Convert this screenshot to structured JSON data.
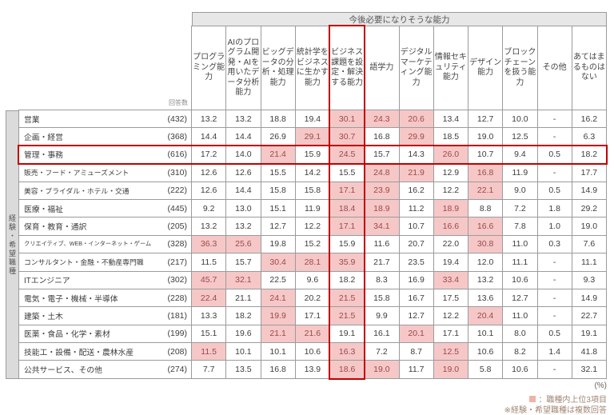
{
  "chart_data": {
    "type": "table",
    "title": "今後必要になりそうな能力",
    "respondents_label": "回答数",
    "side_label": "経験・希望職種",
    "columns": [
      "プログラミング能力",
      "AIのプログラム開発・AIを用いたデータ分析能力",
      "ビッグデータの分析・処理能力",
      "統計学をビジネスに生かす能力",
      "ビジネス課題を設定・解決する能力",
      "語学力",
      "デジタルマーケティング能力",
      "情報セキュリティ能力",
      "デザイン能力",
      "ブロックチェーンを扱う能力",
      "その他",
      "あてはまるものはない"
    ],
    "highlighted_column_index": 4,
    "highlighted_row_index": 2,
    "unit": "(%)",
    "rows": [
      {
        "label": "営業",
        "n": "(432)",
        "values": [
          "13.2",
          "13.2",
          "18.8",
          "19.4",
          "30.1",
          "24.3",
          "20.6",
          "13.4",
          "12.7",
          "10.0",
          "-",
          "16.2"
        ],
        "top3": [
          4,
          5,
          6
        ]
      },
      {
        "label": "企画・経営",
        "n": "(368)",
        "values": [
          "14.4",
          "14.4",
          "26.9",
          "29.1",
          "30.7",
          "16.8",
          "29.9",
          "18.5",
          "19.0",
          "12.5",
          "-",
          "6.3"
        ],
        "top3": [
          3,
          4,
          6
        ]
      },
      {
        "label": "管理・事務",
        "n": "(616)",
        "values": [
          "17.2",
          "14.0",
          "21.4",
          "15.9",
          "24.5",
          "15.7",
          "14.3",
          "26.0",
          "10.7",
          "9.4",
          "0.5",
          "18.2"
        ],
        "top3": [
          2,
          4,
          7
        ]
      },
      {
        "label": "販売・フード・アミューズメント",
        "n": "(310)",
        "values": [
          "12.6",
          "12.6",
          "15.5",
          "14.2",
          "15.5",
          "24.8",
          "21.9",
          "12.9",
          "16.8",
          "11.9",
          "-",
          "17.7"
        ],
        "top3": [
          5,
          6,
          8
        ]
      },
      {
        "label": "美容・ブライダル・ホテル・交通",
        "n": "(222)",
        "values": [
          "12.6",
          "14.4",
          "15.8",
          "15.8",
          "17.1",
          "23.9",
          "16.2",
          "12.2",
          "22.1",
          "9.0",
          "0.5",
          "14.9"
        ],
        "top3": [
          4,
          5,
          8
        ]
      },
      {
        "label": "医療・福祉",
        "n": "(445)",
        "values": [
          "9.2",
          "13.0",
          "15.1",
          "11.9",
          "18.4",
          "18.9",
          "11.2",
          "18.9",
          "8.8",
          "7.2",
          "1.8",
          "29.2"
        ],
        "top3": [
          4,
          5,
          7
        ]
      },
      {
        "label": "保育・教育・通訳",
        "n": "(205)",
        "values": [
          "13.2",
          "13.2",
          "12.7",
          "12.2",
          "17.1",
          "34.1",
          "10.7",
          "16.6",
          "16.6",
          "7.8",
          "1.0",
          "19.0"
        ],
        "top3": [
          4,
          5,
          7,
          8
        ]
      },
      {
        "label": "クリエイティブ、WEB・インターネット・ゲーム",
        "n": "(328)",
        "values": [
          "36.3",
          "25.6",
          "19.8",
          "15.2",
          "15.9",
          "11.6",
          "20.7",
          "22.0",
          "30.8",
          "11.0",
          "0.3",
          "7.6"
        ],
        "top3": [
          0,
          1,
          8
        ]
      },
      {
        "label": "コンサルタント・金融・不動産専門職",
        "n": "(217)",
        "values": [
          "11.5",
          "15.7",
          "30.4",
          "28.1",
          "35.9",
          "21.7",
          "23.5",
          "19.4",
          "12.0",
          "11.1",
          "-",
          "11.1"
        ],
        "top3": [
          2,
          3,
          4
        ]
      },
      {
        "label": "ITエンジニア",
        "n": "(302)",
        "values": [
          "45.7",
          "32.1",
          "22.5",
          "9.6",
          "18.2",
          "8.3",
          "16.9",
          "33.4",
          "13.2",
          "10.6",
          "-",
          "9.3"
        ],
        "top3": [
          0,
          1,
          7
        ]
      },
      {
        "label": "電気・電子・機械・半導体",
        "n": "(228)",
        "values": [
          "22.4",
          "21.1",
          "24.1",
          "20.2",
          "21.5",
          "15.8",
          "16.7",
          "17.5",
          "13.6",
          "12.7",
          "-",
          "14.9"
        ],
        "top3": [
          0,
          2,
          4
        ]
      },
      {
        "label": "建築・土木",
        "n": "(181)",
        "values": [
          "13.3",
          "18.2",
          "19.9",
          "17.1",
          "21.5",
          "9.9",
          "12.7",
          "12.2",
          "20.4",
          "11.0",
          "-",
          "22.7"
        ],
        "top3": [
          2,
          4,
          8
        ]
      },
      {
        "label": "医薬・食品・化学・素材",
        "n": "(199)",
        "values": [
          "15.1",
          "19.6",
          "21.1",
          "21.6",
          "19.1",
          "16.1",
          "20.1",
          "17.1",
          "10.1",
          "8.0",
          "0.5",
          "19.1"
        ],
        "top3": [
          2,
          3,
          6
        ]
      },
      {
        "label": "技能工・設備・配送・農林水産",
        "n": "(208)",
        "values": [
          "11.5",
          "10.1",
          "10.1",
          "10.6",
          "16.3",
          "7.2",
          "8.7",
          "12.5",
          "10.6",
          "8.2",
          "1.4",
          "41.8"
        ],
        "top3": [
          0,
          4,
          7
        ]
      },
      {
        "label": "公共サービス、その他",
        "n": "(274)",
        "values": [
          "7.7",
          "13.5",
          "16.8",
          "13.9",
          "18.6",
          "19.0",
          "11.7",
          "19.0",
          "5.8",
          "10.6",
          "-",
          "32.1"
        ],
        "top3": [
          4,
          5,
          7
        ]
      }
    ],
    "footer": {
      "percent": "(%)",
      "legend": "：職種内上位3項目",
      "note": "※経験・希望職種は複数回答"
    },
    "colors": {
      "highlight_bg": "#f6c7c7",
      "highlight_text": "#9b4a4a",
      "outline_red": "#c00000",
      "legend_swatch": "#f0b3a8"
    }
  }
}
